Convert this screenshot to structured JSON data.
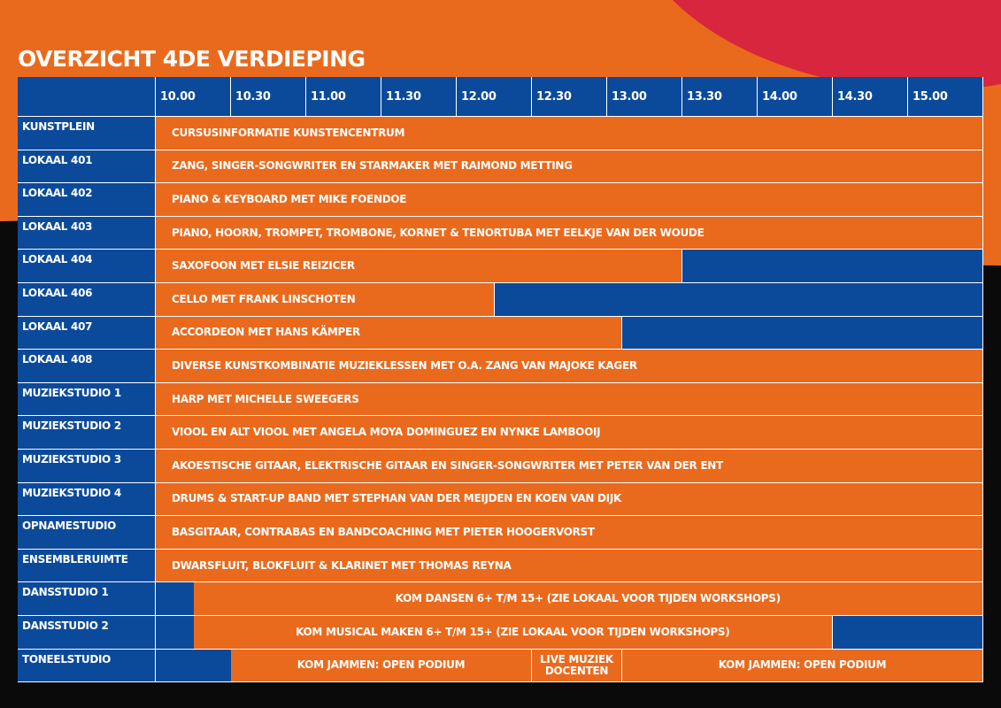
{
  "title": "OVERZICHT 4DE VERDIEPING",
  "times": [
    "10.00",
    "10.30",
    "11.00",
    "11.30",
    "12.00",
    "12.30",
    "13.00",
    "13.30",
    "14.00",
    "14.30",
    "15.00"
  ],
  "rows": [
    {
      "room": "KUNSTPLEIN",
      "events": [
        {
          "label": "CURSUSINFORMATIE KUNSTENCENTRUM"
        }
      ]
    },
    {
      "room": "LOKAAL 401",
      "events": [
        {
          "label": "ZANG, SINGER-SONGWRITER EN STARMAKER MET RAIMOND METTING"
        }
      ]
    },
    {
      "room": "LOKAAL 402",
      "events": [
        {
          "label": "PIANO & KEYBOARD MET MIKE FOENDOE"
        }
      ]
    },
    {
      "room": "LOKAAL 403",
      "events": [
        {
          "label": "PIANO, HOORN, TROMPET, TROMBONE, KORNET & TENORTUBA MET EELKJE VAN DER WOUDE"
        }
      ]
    },
    {
      "room": "LOKAAL 404",
      "events": [
        {
          "label": "SAXOFOON MET ELSIE REIZICER"
        }
      ]
    },
    {
      "room": "LOKAAL 406",
      "events": [
        {
          "label": "CELLO MET FRANK LINSCHOTEN"
        }
      ]
    },
    {
      "room": "LOKAAL 407",
      "events": [
        {
          "label": "ACCORDEON MET HANS KÄMPER"
        }
      ]
    },
    {
      "room": "LOKAAL 408",
      "events": [
        {
          "label": "DIVERSE KUNSTKOMBINATIE MUZIEKLESSEN MET O.A. ZANG VAN MAJOKE KAGER"
        }
      ]
    },
    {
      "room": "MUZIEKSTUDIO 1",
      "events": [
        {
          "label": "HARP MET MICHELLE SWEEGERS"
        }
      ]
    },
    {
      "room": "MUZIEKSTUDIO 2",
      "events": [
        {
          "label": "VIOOL EN ALT VIOOL MET ANGELA MOYA DOMINGUEZ EN NYNKE LAMBOOIJ"
        }
      ]
    },
    {
      "room": "MUZIEKSTUDIO 3",
      "events": [
        {
          "label": "AKOESTISCHE GITAAR, ELEKTRISCHE GITAAR EN SINGER-SONGWRITER MET PETER VAN DER ENT"
        }
      ]
    },
    {
      "room": "MUZIEKSTUDIO 4",
      "events": [
        {
          "label": "DRUMS & START-UP BAND MET STEPHAN VAN DER MEIJDEN EN KOEN VAN DIJK"
        }
      ]
    },
    {
      "room": "OPNAMESTUDIO",
      "events": [
        {
          "label": "BASGITAAR, CONTRABAS EN BANDCOACHING MET PIETER HOOGERVORST"
        }
      ]
    },
    {
      "room": "ENSEMBLERUIMTE",
      "events": [
        {
          "label": "DWARSFLUIT, BLOKFLUIT & KLARINET MET THOMAS REYNA"
        }
      ]
    },
    {
      "room": "DANSSTUDIO 1",
      "events": [
        {
          "label": "KOM DANSEN 6+ T/M 15+ (ZIE LOKAAL VOOR TIJDEN WORKSHOPS)"
        }
      ]
    },
    {
      "room": "DANSSTUDIO 2",
      "events": [
        {
          "label": "KOM MUSICAL MAKEN 6+ T/M 15+ (ZIE LOKAAL VOOR TIJDEN WORKSHOPS)"
        }
      ]
    },
    {
      "room": "TONEELSTUDIO",
      "events": [
        {
          "label": "KOM JAMMEN: OPEN PODIUM"
        },
        {
          "label": "LIVE MUZIEK DOCENTEN"
        },
        {
          "label": "KOM JAMMEN: OPEN PODIUM"
        }
      ]
    }
  ]
}
